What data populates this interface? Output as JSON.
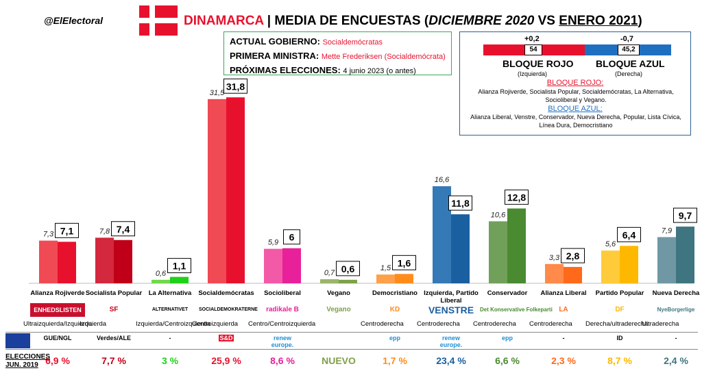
{
  "handle": "@ElElectoral",
  "title": {
    "country": "DINAMARCA",
    "sep": " | MEDIA DE ENCUESTAS (",
    "from": "DICIEMBRE 2020",
    "vs": " VS ",
    "to": "ENERO 2021",
    "close": ")"
  },
  "government": {
    "k1": "ACTUAL GOBIERNO:",
    "v1": "Socialdemócratas",
    "k2": "PRIMERA MINISTRA:",
    "v2": "Mette Frederiksen (Socialdemócrata)",
    "k3": "PRÓXIMAS ELECCIONES:",
    "v3": "4 junio 2023 (o antes)"
  },
  "blocks": {
    "red": {
      "change": "+0,2",
      "value": "54",
      "name": "BLOQUE ROJO",
      "sub": "(Izquierda)",
      "color": "#e8112d"
    },
    "blue": {
      "change": "-0,7",
      "value": "45,2",
      "name": "BLOQUE AZUL",
      "sub": "(Derecha)",
      "color": "#1f6fc1"
    },
    "red_title": "BLOQUE ROJO:",
    "red_desc": "Alianza Rojiverde, Socialista Popular, Socialdemócratas, La Alternativa, Socioliberal y Vegano.",
    "blue_title": "BLOQUE AZUL:",
    "blue_desc": "Alianza Liberal, Venstre, Conservador, Nueva Derecha, Popular, Lista Cívica, Línea Dura, Democristiano"
  },
  "chart_data": {
    "type": "bar",
    "series": [
      {
        "name": "DICIEMBRE 2020",
        "values": [
          7.3,
          7.8,
          0.6,
          31.5,
          5.9,
          0.7,
          1.5,
          16.6,
          10.6,
          3.3,
          5.6,
          7.9
        ]
      },
      {
        "name": "ENERO 2021",
        "values": [
          7.1,
          7.4,
          1.1,
          31.8,
          6,
          0.6,
          1.6,
          11.8,
          12.8,
          2.8,
          6.4,
          9.7
        ]
      }
    ],
    "categories": [
      "Alianza Rojiverde",
      "Socialista Popular",
      "La Alternativa",
      "Socialdemócratas",
      "Socioliberal",
      "Vegano",
      "Democristiano",
      "Izquierda, Partido Liberal",
      "Conservador",
      "Alianza Liberal",
      "Partido Popular",
      "Nueva Derecha"
    ],
    "labels_prev": [
      "7,3",
      "7,8",
      "0,6",
      "31,5",
      "5,9",
      "0,7",
      "1,5",
      "16,6",
      "10,6",
      "3,3",
      "5,6",
      "7,9"
    ],
    "labels_curr": [
      "7,1",
      "7,4",
      "1,1",
      "31,8",
      "6",
      "0,6",
      "1,6",
      "11,8",
      "12,8",
      "2,8",
      "6,4",
      "9,7"
    ],
    "colors_prev": [
      "#f04a55",
      "#d3283e",
      "#6fd94a",
      "#f04a55",
      "#f25aa8",
      "#9ab56a",
      "#ffa04a",
      "#3579b6",
      "#71a05a",
      "#ff8a4a",
      "#ffcb3a",
      "#6f98a4"
    ],
    "colors_curr": [
      "#e8112d",
      "#c00018",
      "#1fd11a",
      "#e8112d",
      "#e8209a",
      "#7fa048",
      "#ff8c1a",
      "#1a5fa0",
      "#4a8a30",
      "#ff6a1a",
      "#ffb800",
      "#3f7580"
    ],
    "ylim": [
      0,
      33
    ]
  },
  "parties": [
    {
      "name": "Alianza Rojiverde",
      "logo": "ENHEDSLISTEN",
      "ideology": "Ultraizquierda/Izquierda",
      "eu": "GUE/NGL",
      "result": "6,9 %",
      "rcolor": "#e8112d"
    },
    {
      "name": "Socialista Popular",
      "logo": "SF",
      "ideology": "Izquierda",
      "eu": "Verdes/ALE",
      "result": "7,7 %",
      "rcolor": "#c00018"
    },
    {
      "name": "La Alternativa",
      "logo": "ALTERNATIVET",
      "ideology": "Izquierda/Centroizquierda",
      "eu": "-",
      "result": "3 %",
      "rcolor": "#1fd11a"
    },
    {
      "name": "Socialdemócratas",
      "logo": "SOCIALDEMOKRATERNE",
      "ideology": "Centroizquierda",
      "eu": "S&D",
      "result": "25,9 %",
      "rcolor": "#e8112d"
    },
    {
      "name": "Socioliberal",
      "logo": "radikale B",
      "ideology": "Centro/Centroizquierda",
      "eu": "renew europe.",
      "result": "8,6 %",
      "rcolor": "#e8209a"
    },
    {
      "name": "Vegano",
      "logo": "Vegano",
      "ideology": "",
      "eu": "",
      "result": "NUEVO",
      "rcolor": "#7fa048"
    },
    {
      "name": "Democristiano",
      "logo": "KD",
      "ideology": "Centroderecha",
      "eu": "epp",
      "result": "1,7 %",
      "rcolor": "#ff8c1a"
    },
    {
      "name": "Izquierda, Partido Liberal",
      "logo": "VENSTRE",
      "ideology": "Centroderecha",
      "eu": "renew europe.",
      "result": "23,4 %",
      "rcolor": "#1a5fa0"
    },
    {
      "name": "Conservador",
      "logo": "Det Konservative Folkeparti",
      "ideology": "Centroderecha",
      "eu": "epp",
      "result": "6,6 %",
      "rcolor": "#4a8a30"
    },
    {
      "name": "Alianza Liberal",
      "logo": "LA",
      "ideology": "Centroderecha",
      "eu": "-",
      "result": "2,3 %",
      "rcolor": "#ff6a1a"
    },
    {
      "name": "Partido Popular",
      "logo": "DF",
      "ideology": "Derecha/ultraderecha",
      "eu": "ID",
      "result": "8,7 %",
      "rcolor": "#ffb800"
    },
    {
      "name": "Nueva Derecha",
      "logo": "NyeBorgerlige",
      "ideology": "Ultraderecha",
      "eu": "-",
      "result": "2,4 %",
      "rcolor": "#3f7580"
    }
  ],
  "elections_label": "ELECCIONES JUN. 2019"
}
